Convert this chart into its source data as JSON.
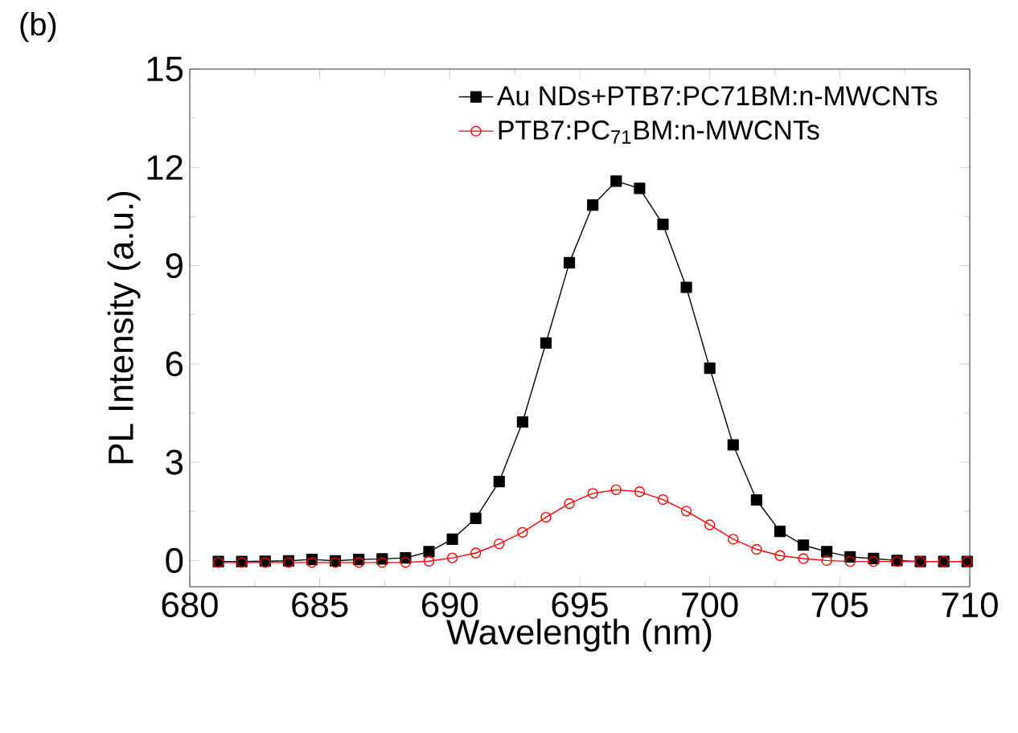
{
  "chart_data": {
    "type": "line",
    "xlabel": "Wavelength (nm)",
    "ylabel": "PL Intensity (a.u.)",
    "annotations": [
      "(b)"
    ],
    "x": [
      681.1,
      682.0,
      682.9,
      683.8,
      684.7,
      685.6,
      686.5,
      687.4,
      688.3,
      689.2,
      690.1,
      691.0,
      691.9,
      692.8,
      693.7,
      694.6,
      695.5,
      696.4,
      697.3,
      698.2,
      699.1,
      700.0,
      700.9,
      701.8,
      702.7,
      703.6,
      704.5,
      705.4,
      706.3,
      707.2,
      708.1,
      709.0,
      709.9
    ],
    "series": [
      {
        "name": "Au NDs+PTB7:PC71BM:n-MWCNTs",
        "color": "#000000",
        "marker": "square",
        "values": [
          -0.03,
          -0.03,
          -0.02,
          -0.01,
          0.03,
          -0.01,
          0.03,
          0.05,
          0.08,
          0.27,
          0.65,
          1.29,
          2.41,
          4.23,
          6.64,
          9.09,
          10.85,
          11.58,
          11.36,
          10.26,
          8.34,
          5.87,
          3.53,
          1.85,
          0.89,
          0.47,
          0.27,
          0.11,
          0.06,
          0.0,
          -0.03,
          -0.03,
          -0.03
        ]
      },
      {
        "name": "PTB7:PC$_{71}$BM:n-MWCNTs",
        "color": "#ff0000",
        "marker": "circle",
        "values": [
          -0.06,
          -0.06,
          -0.06,
          -0.06,
          -0.06,
          -0.06,
          -0.06,
          -0.06,
          -0.06,
          -0.02,
          0.08,
          0.23,
          0.51,
          0.86,
          1.32,
          1.74,
          2.05,
          2.16,
          2.1,
          1.86,
          1.51,
          1.09,
          0.65,
          0.34,
          0.15,
          0.06,
          0.0,
          -0.03,
          -0.03,
          -0.03,
          -0.03,
          -0.03,
          -0.03
        ]
      }
    ],
    "xlim": [
      680,
      710
    ],
    "xticks": [
      680,
      685,
      690,
      695,
      700,
      705,
      710
    ],
    "ylim": [
      -0.8,
      15
    ],
    "yticks": [
      0,
      3,
      6,
      9,
      12,
      15
    ],
    "grid": false,
    "legend": "top right",
    "line_style": "solid"
  }
}
